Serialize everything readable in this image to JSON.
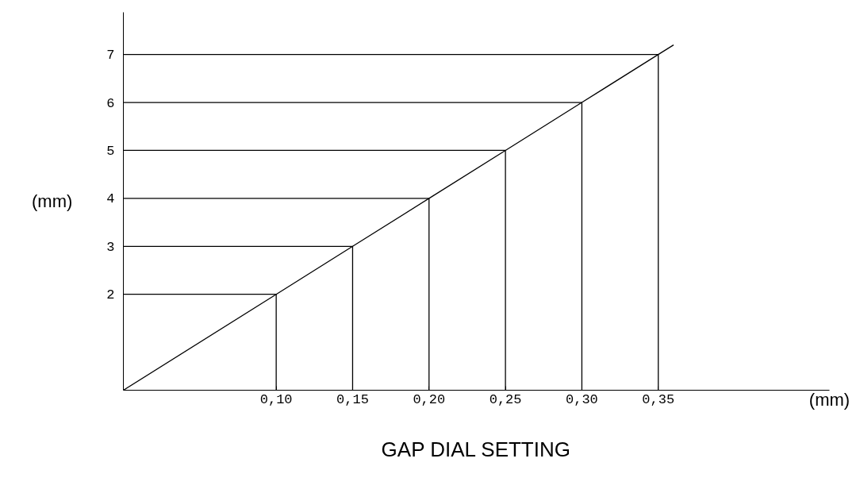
{
  "chart_data": {
    "type": "line",
    "title": "GAP DIAL SETTING",
    "xlabel": "(mm)",
    "ylabel": "(mm)",
    "x": [
      0,
      0.1,
      0.15,
      0.2,
      0.25,
      0.3,
      0.35,
      0.36
    ],
    "series": [
      {
        "color": "#000000",
        "values": [
          0,
          2,
          3,
          4,
          5,
          6,
          7,
          7.2
        ]
      },
      {
        "color": "#000000",
        "x": [
          0,
          0.1,
          0.1
        ],
        "values": [
          2,
          2,
          0
        ]
      },
      {
        "color": "#000000",
        "x": [
          0,
          0.15,
          0.15
        ],
        "values": [
          3,
          3,
          0
        ]
      },
      {
        "color": "#000000",
        "x": [
          0,
          0.2,
          0.2
        ],
        "values": [
          4,
          4,
          0
        ]
      },
      {
        "color": "#000000",
        "x": [
          0,
          0.25,
          0.25
        ],
        "values": [
          5,
          5,
          0
        ]
      },
      {
        "color": "#000000",
        "x": [
          0,
          0.3,
          0.3
        ],
        "values": [
          6,
          6,
          0
        ]
      },
      {
        "color": "#000000",
        "x": [
          0,
          0.35,
          0.35
        ],
        "values": [
          7,
          7,
          0
        ]
      }
    ],
    "xlim": [
      0,
      0.462
    ],
    "ylim": [
      0,
      7.88
    ],
    "xticks": [
      {
        "value": 0.1,
        "label": "0,10"
      },
      {
        "value": 0.15,
        "label": "0,15"
      },
      {
        "value": 0.2,
        "label": "0,20"
      },
      {
        "value": 0.25,
        "label": "0,25"
      },
      {
        "value": 0.3,
        "label": "0,30"
      },
      {
        "value": 0.35,
        "label": "0,35"
      }
    ],
    "yticks": [
      2,
      3,
      4,
      5,
      6,
      7
    ],
    "grid": false,
    "marker": "none",
    "line_style": "solid"
  }
}
